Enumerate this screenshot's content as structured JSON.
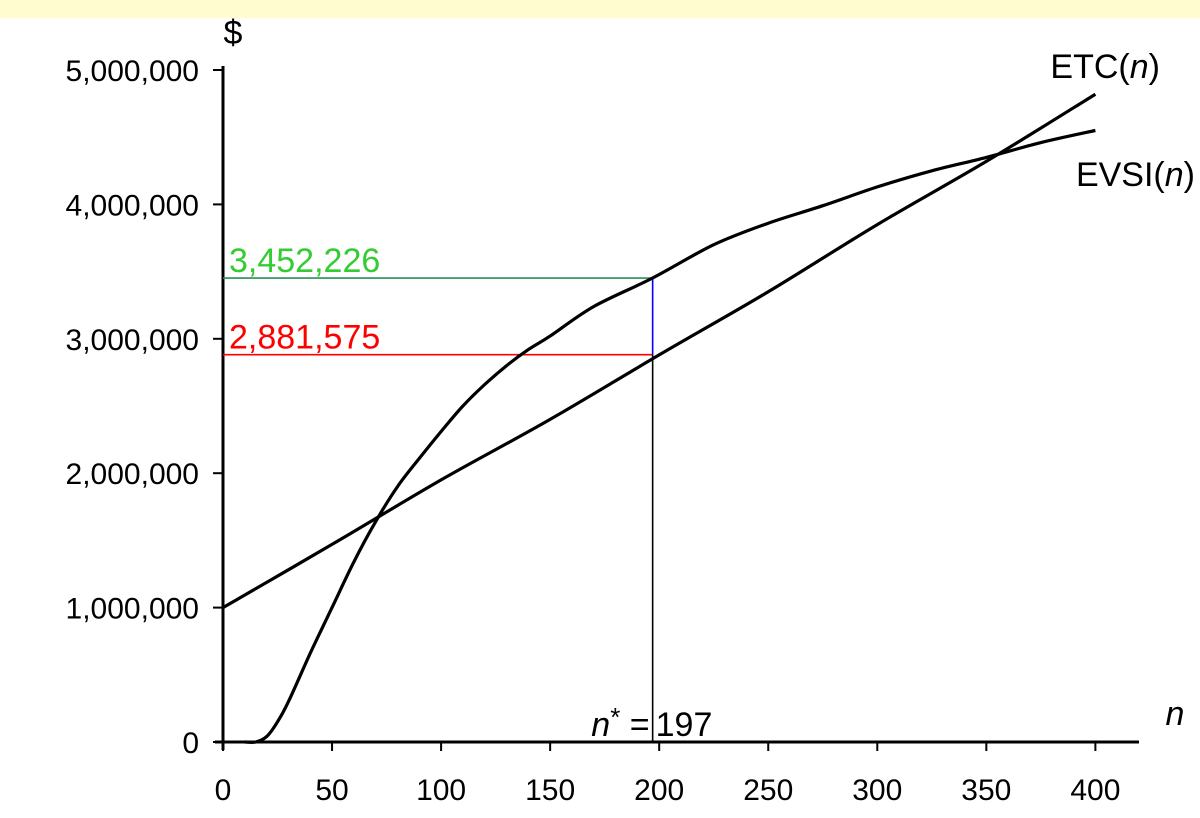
{
  "chart_data": {
    "type": "line",
    "y_unit_label": "$",
    "x_axis_label": "n",
    "xlim": [
      0,
      420
    ],
    "ylim": [
      0,
      5000000
    ],
    "x_ticks": [
      0,
      50,
      100,
      150,
      200,
      250,
      300,
      350,
      400
    ],
    "y_ticks": [
      0,
      1000000,
      2000000,
      3000000,
      4000000,
      5000000
    ],
    "x_tick_labels": [
      "0",
      "50",
      "100",
      "150",
      "200",
      "250",
      "300",
      "350",
      "400"
    ],
    "y_tick_labels": [
      "0",
      "1,000,000",
      "2,000,000",
      "3,000,000",
      "4,000,000",
      "5,000,000"
    ],
    "grid": false,
    "series": [
      {
        "name": "ETC(n)",
        "name_main": "ETC(",
        "name_var": "n",
        "name_close": ")",
        "color": "#000000",
        "x": [
          0,
          50,
          100,
          150,
          200,
          250,
          300,
          350,
          400
        ],
        "y": [
          1000000,
          1470000,
          1950000,
          2400000,
          2880000,
          3350000,
          3850000,
          4320000,
          4820000
        ]
      },
      {
        "name": "EVSI(n)",
        "name_main": "EVSI(",
        "name_var": "n",
        "name_close": ")",
        "color": "#000000",
        "x": [
          10,
          15,
          20,
          25,
          30,
          40,
          50,
          60,
          70,
          80,
          90,
          100,
          110,
          120,
          130,
          140,
          150,
          170,
          197,
          225,
          250,
          275,
          300,
          325,
          350,
          375,
          400
        ],
        "y": [
          0,
          0,
          40000,
          150000,
          300000,
          660000,
          1000000,
          1340000,
          1640000,
          1900000,
          2110000,
          2310000,
          2500000,
          2660000,
          2800000,
          2920000,
          3020000,
          3240000,
          3452226,
          3700000,
          3860000,
          3990000,
          4130000,
          4250000,
          4350000,
          4460000,
          4550000
        ]
      }
    ],
    "annotations": {
      "optimum": {
        "n": 197,
        "n_label_var": "n",
        "n_label_sup": "*",
        "n_label_eq": " = ",
        "n_label_value": "197",
        "evsi_value": 3452226,
        "evsi_label": "3,452,226",
        "evsi_color": "#33cc33",
        "evsi_line_color": "#2e8b57",
        "etc_value": 2881575,
        "etc_label": "2,881,575",
        "etc_color": "#ff0000",
        "gap_color": "#0000ff"
      }
    }
  }
}
